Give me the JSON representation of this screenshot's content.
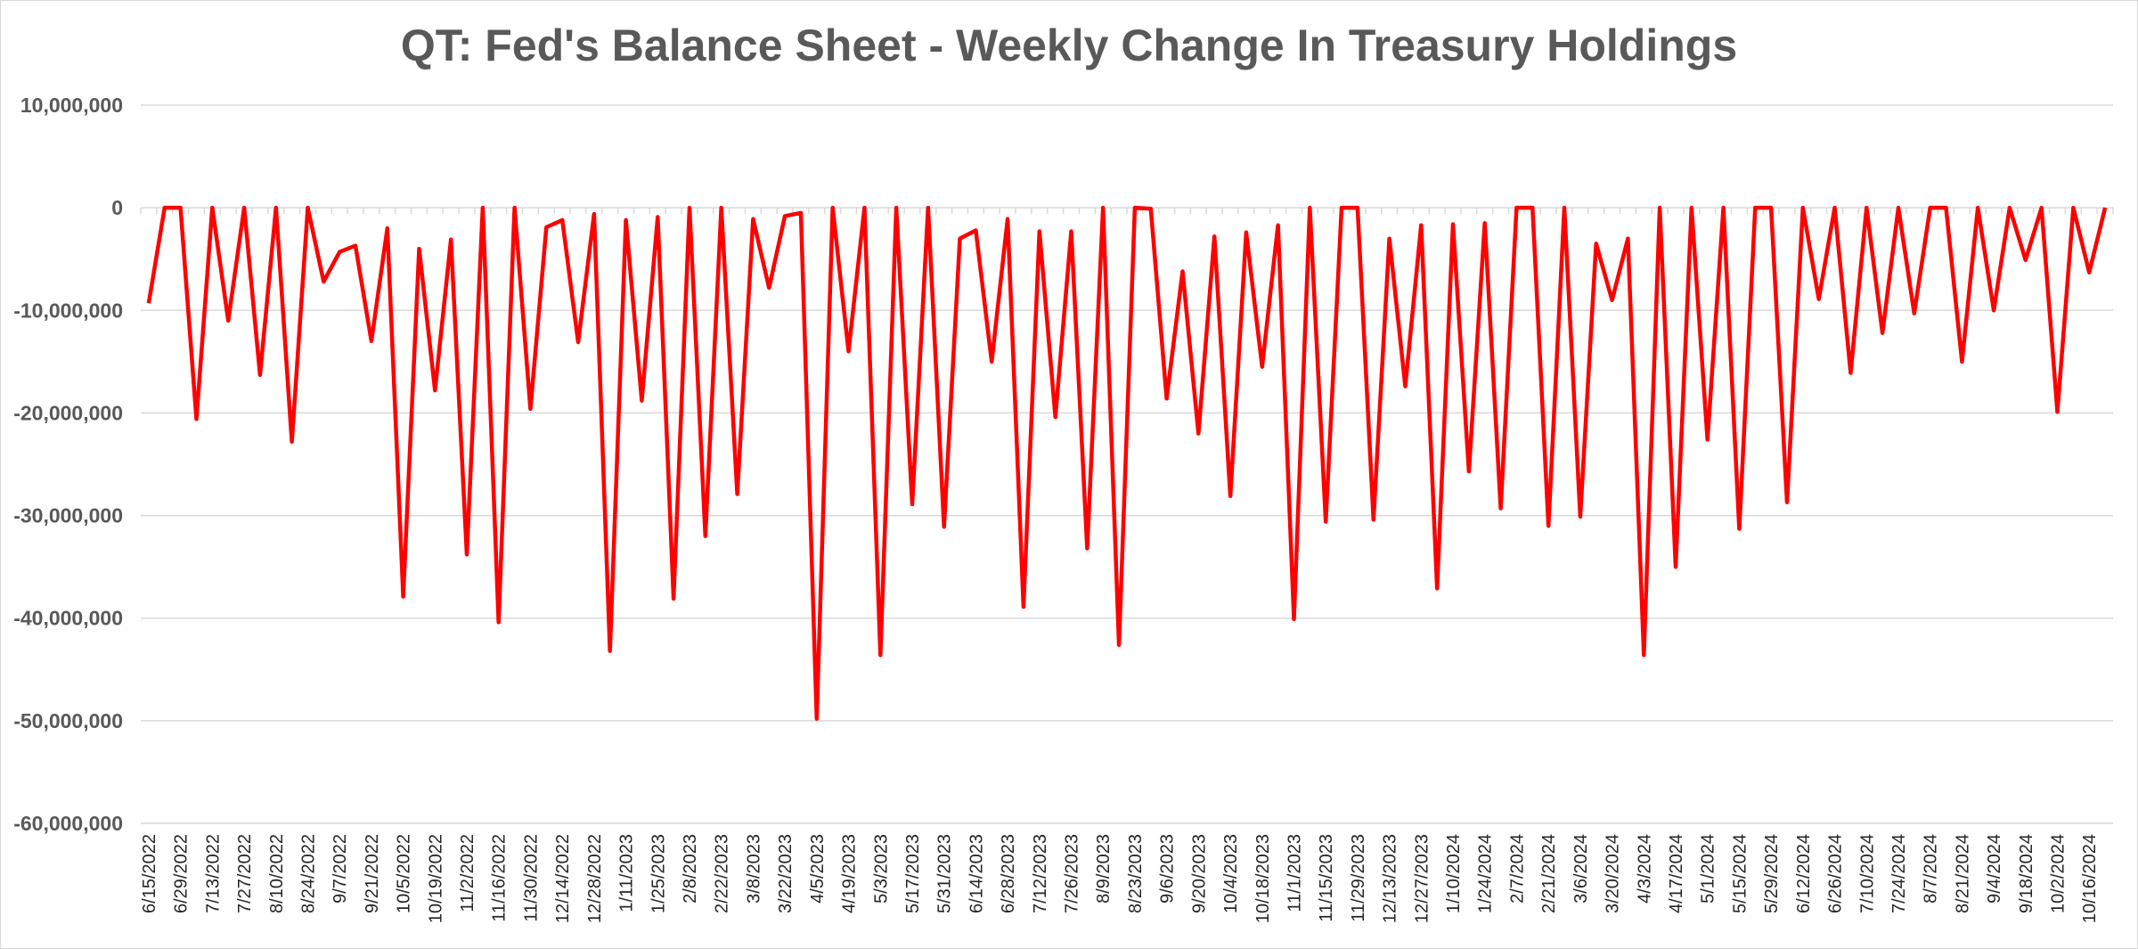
{
  "chart_data": {
    "type": "line",
    "title": "QT: Fed's Balance Sheet - Weekly Change In Treasury Holdings",
    "xlabel": "",
    "ylabel": "",
    "ylim": [
      -60000000,
      10000000
    ],
    "yticks": [
      10000000,
      0,
      -10000000,
      -20000000,
      -30000000,
      -40000000,
      -50000000,
      -60000000
    ],
    "ytick_labels": [
      "10,000,000",
      "0",
      "-10,000,000",
      "-20,000,000",
      "-30,000,000",
      "-40,000,000",
      "-50,000,000",
      "-60,000,000"
    ],
    "grid": true,
    "legend": "none",
    "line_color": "#ff0000",
    "grid_color": "#d9d9d9",
    "x_start_label": "6/15/2022",
    "x_tick_labels": [
      "6/15/2022",
      "6/29/2022",
      "7/13/2022",
      "7/27/2022",
      "8/10/2022",
      "8/24/2022",
      "9/7/2022",
      "9/21/2022",
      "10/5/2022",
      "10/19/2022",
      "11/2/2022",
      "11/16/2022",
      "11/30/2022",
      "12/14/2022",
      "12/28/2022",
      "1/11/2023",
      "1/25/2023",
      "2/8/2023",
      "2/22/2023",
      "3/8/2023",
      "3/22/2023",
      "4/5/2023",
      "4/19/2023",
      "5/3/2023",
      "5/17/2023",
      "5/31/2023",
      "6/14/2023",
      "6/28/2023",
      "7/12/2023",
      "7/26/2023",
      "8/9/2023",
      "8/23/2023",
      "9/6/2023",
      "9/20/2023",
      "10/4/2023",
      "10/18/2023",
      "11/1/2023",
      "11/15/2023",
      "11/29/2023",
      "12/13/2023",
      "12/27/2023",
      "1/10/2024",
      "1/24/2024",
      "2/7/2024",
      "2/21/2024",
      "3/6/2024",
      "3/20/2024",
      "4/3/2024",
      "4/17/2024",
      "5/1/2024",
      "5/15/2024",
      "5/29/2024",
      "6/12/2024",
      "6/26/2024",
      "7/10/2024",
      "7/24/2024",
      "8/7/2024",
      "8/21/2024",
      "9/4/2024",
      "9/18/2024",
      "10/2/2024",
      "10/16/2024"
    ],
    "series": [
      {
        "values": [
          -9300000,
          0,
          0,
          -20600000,
          0,
          -11000000,
          0,
          -16300000,
          0,
          -22800000,
          0,
          -7200000,
          -4300000,
          -3700000,
          -13000000,
          -2000000,
          -37900000,
          -4000000,
          -17800000,
          -3100000,
          -33800000,
          0,
          -40400000,
          0,
          -19600000,
          -1900000,
          -1200000,
          -13100000,
          -600000,
          -43200000,
          -1200000,
          -18800000,
          -900000,
          -38100000,
          0,
          -32000000,
          0,
          -27900000,
          -1100000,
          -7800000,
          -800000,
          -500000,
          -49800000,
          0,
          -14000000,
          0,
          -43600000,
          0,
          -28900000,
          0,
          -31100000,
          -3000000,
          -2200000,
          -15000000,
          -1100000,
          -38900000,
          -2300000,
          -20400000,
          -2300000,
          -33200000,
          0,
          -42600000,
          0,
          -100000,
          -18600000,
          -6200000,
          -22000000,
          -2800000,
          -28100000,
          -2400000,
          -15500000,
          -1700000,
          -40100000,
          0,
          -30600000,
          0,
          0,
          -30400000,
          -3000000,
          -17400000,
          -1700000,
          -37100000,
          -1600000,
          -25700000,
          -1500000,
          -29300000,
          0,
          0,
          -31000000,
          0,
          -30100000,
          -3500000,
          -9000000,
          -3000000,
          -43600000,
          0,
          -35000000,
          0,
          -22600000,
          0,
          -31300000,
          0,
          0,
          -28700000,
          0,
          -8900000,
          0,
          -16100000,
          0,
          -12200000,
          0,
          -10300000,
          0,
          0,
          -15000000,
          0,
          -10000000,
          0,
          -5100000,
          0,
          -19900000,
          0,
          -6300000,
          0
        ]
      }
    ]
  }
}
